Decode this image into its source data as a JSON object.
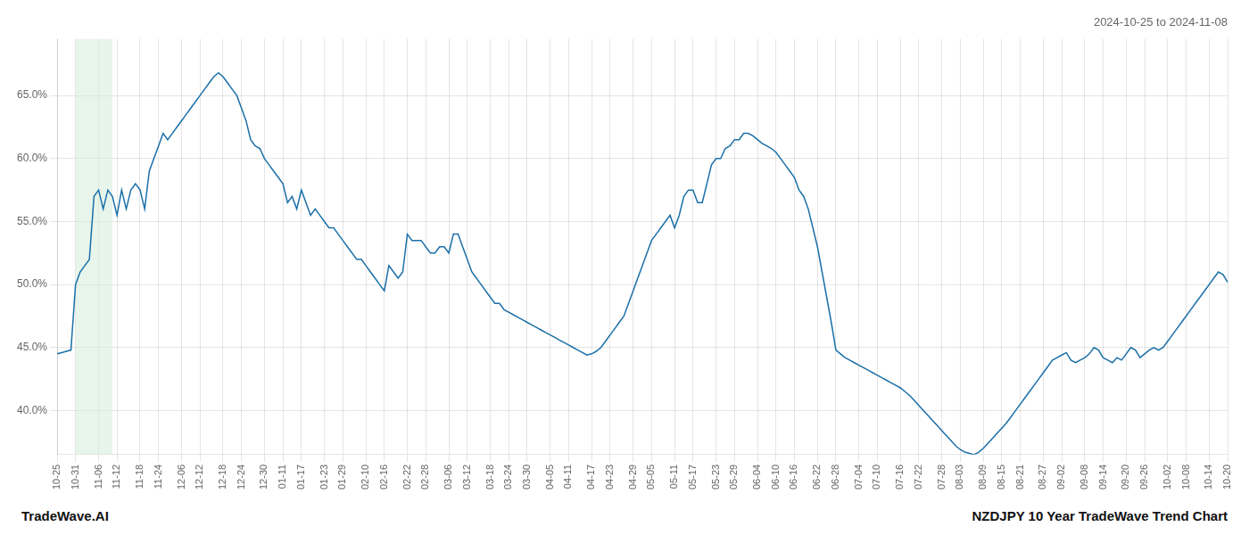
{
  "chart_data": {
    "type": "line",
    "title": "2024-10-25 to 2024-11-08",
    "annotations": [
      "TradeWave.AI",
      "NZDJPY 10 Year TradeWave Trend Chart"
    ],
    "categories": [
      "10-25",
      null,
      null,
      null,
      "10-31",
      null,
      null,
      null,
      null,
      "11-06",
      null,
      null,
      null,
      "11-12",
      null,
      null,
      null,
      null,
      "11-18",
      null,
      null,
      null,
      "11-24",
      null,
      null,
      null,
      null,
      "12-06",
      null,
      null,
      null,
      "12-12",
      null,
      null,
      null,
      null,
      "12-18",
      null,
      null,
      null,
      "12-24",
      null,
      null,
      null,
      null,
      "12-30",
      null,
      null,
      null,
      "01-11",
      null,
      null,
      null,
      "01-17",
      null,
      null,
      null,
      null,
      "01-23",
      null,
      null,
      null,
      "01-29",
      null,
      null,
      null,
      null,
      "02-10",
      null,
      null,
      null,
      "02-16",
      null,
      null,
      null,
      null,
      "02-22",
      null,
      null,
      null,
      "02-28",
      null,
      null,
      null,
      null,
      "03-06",
      null,
      null,
      null,
      "03-12",
      null,
      null,
      null,
      null,
      "03-18",
      null,
      null,
      null,
      "03-24",
      null,
      null,
      null,
      "03-30",
      null,
      null,
      null,
      null,
      "04-05",
      null,
      null,
      null,
      "04-11",
      null,
      null,
      null,
      null,
      "04-17",
      null,
      null,
      null,
      "04-23",
      null,
      null,
      null,
      null,
      "04-29",
      null,
      null,
      null,
      "05-05",
      null,
      null,
      null,
      null,
      "05-11",
      null,
      null,
      null,
      "05-17",
      null,
      null,
      null,
      null,
      "05-23",
      null,
      null,
      null,
      "05-29",
      null,
      null,
      null,
      null,
      "06-04",
      null,
      null,
      null,
      "06-10",
      null,
      null,
      null,
      "06-16",
      null,
      null,
      null,
      null,
      "06-22",
      null,
      null,
      null,
      "06-28",
      null,
      null,
      null,
      null,
      "07-04",
      null,
      null,
      null,
      "07-10",
      null,
      null,
      null,
      null,
      "07-16",
      null,
      null,
      null,
      "07-22",
      null,
      null,
      null,
      null,
      "07-28",
      null,
      null,
      null,
      "08-03",
      null,
      null,
      null,
      null,
      "08-09",
      null,
      null,
      null,
      "08-15",
      null,
      null,
      null,
      "08-21",
      null,
      null,
      null,
      null,
      "08-27",
      null,
      null,
      null,
      "09-02",
      null,
      null,
      null,
      null,
      "09-08",
      null,
      null,
      null,
      "09-14",
      null,
      null,
      null,
      null,
      "09-20",
      null,
      null,
      null,
      "09-26",
      null,
      null,
      null,
      null,
      "10-02",
      null,
      null,
      null,
      "10-08",
      null,
      null,
      null,
      null,
      "10-14",
      null,
      null,
      null,
      "10-20"
    ],
    "values": [
      0.445,
      0.446,
      0.447,
      0.448,
      0.5,
      0.51,
      0.515,
      0.52,
      0.57,
      0.575,
      0.56,
      0.575,
      0.57,
      0.555,
      0.575,
      0.56,
      0.575,
      0.58,
      0.575,
      0.56,
      0.59,
      0.6,
      0.61,
      0.62,
      0.615,
      0.62,
      0.625,
      0.63,
      0.635,
      0.64,
      0.645,
      0.65,
      0.655,
      0.66,
      0.665,
      0.668,
      0.665,
      0.66,
      0.655,
      0.65,
      0.64,
      0.63,
      0.615,
      0.61,
      0.608,
      0.6,
      0.595,
      0.59,
      0.585,
      0.58,
      0.565,
      0.57,
      0.56,
      0.575,
      0.565,
      0.555,
      0.56,
      0.555,
      0.55,
      0.545,
      0.545,
      0.54,
      0.535,
      0.53,
      0.525,
      0.52,
      0.52,
      0.515,
      0.51,
      0.505,
      0.5,
      0.495,
      0.515,
      0.51,
      0.505,
      0.51,
      0.54,
      0.535,
      0.535,
      0.535,
      0.53,
      0.525,
      0.525,
      0.53,
      0.53,
      0.525,
      0.54,
      0.54,
      0.53,
      0.52,
      0.51,
      0.505,
      0.5,
      0.495,
      0.49,
      0.485,
      0.485,
      0.48,
      0.478,
      0.476,
      0.474,
      0.472,
      0.47,
      0.468,
      0.466,
      0.464,
      0.462,
      0.46,
      0.458,
      0.456,
      0.454,
      0.452,
      0.45,
      0.448,
      0.446,
      0.444,
      0.445,
      0.447,
      0.45,
      0.455,
      0.46,
      0.465,
      0.47,
      0.475,
      0.485,
      0.495,
      0.505,
      0.515,
      0.525,
      0.535,
      0.54,
      0.545,
      0.55,
      0.555,
      0.545,
      0.555,
      0.57,
      0.575,
      0.575,
      0.565,
      0.565,
      0.58,
      0.595,
      0.6,
      0.6,
      0.608,
      0.61,
      0.615,
      0.615,
      0.62,
      0.62,
      0.618,
      0.615,
      0.612,
      0.61,
      0.608,
      0.605,
      0.6,
      0.595,
      0.59,
      0.585,
      0.575,
      0.57,
      0.56,
      0.545,
      0.53,
      0.51,
      0.49,
      0.47,
      0.448,
      0.445,
      0.442,
      0.44,
      0.438,
      0.436,
      0.434,
      0.432,
      0.43,
      0.428,
      0.426,
      0.424,
      0.422,
      0.42,
      0.418,
      0.415,
      0.412,
      0.408,
      0.404,
      0.4,
      0.396,
      0.392,
      0.388,
      0.384,
      0.38,
      0.376,
      0.372,
      0.369,
      0.367,
      0.366,
      0.365,
      0.367,
      0.37,
      0.374,
      0.378,
      0.382,
      0.386,
      0.39,
      0.395,
      0.4,
      0.405,
      0.41,
      0.415,
      0.42,
      0.425,
      0.43,
      0.435,
      0.44,
      0.442,
      0.444,
      0.446,
      0.44,
      0.438,
      0.44,
      0.442,
      0.445,
      0.45,
      0.448,
      0.442,
      0.44,
      0.438,
      0.442,
      0.44,
      0.445,
      0.45,
      0.448,
      0.442,
      0.445,
      0.448,
      0.45,
      0.448,
      0.45,
      0.455,
      0.46,
      0.465,
      0.47,
      0.475,
      0.48,
      0.485,
      0.49,
      0.495,
      0.5,
      0.505,
      0.51,
      0.508,
      0.502
    ],
    "color": "#1a6fa8",
    "ylim": [
      0.365,
      0.695
    ],
    "yticks": [
      {
        "value": 0.4,
        "label": "40.0%"
      },
      {
        "value": 0.45,
        "label": "45.0%"
      },
      {
        "value": 0.5,
        "label": "50.0%"
      },
      {
        "value": 0.55,
        "label": "55.0%"
      },
      {
        "value": 0.6,
        "label": "60.0%"
      },
      {
        "value": 0.65,
        "label": "65.0%"
      }
    ],
    "grid": true,
    "highlight": {
      "x_start": 4,
      "x_end": 12,
      "color": "#d4edda"
    }
  }
}
